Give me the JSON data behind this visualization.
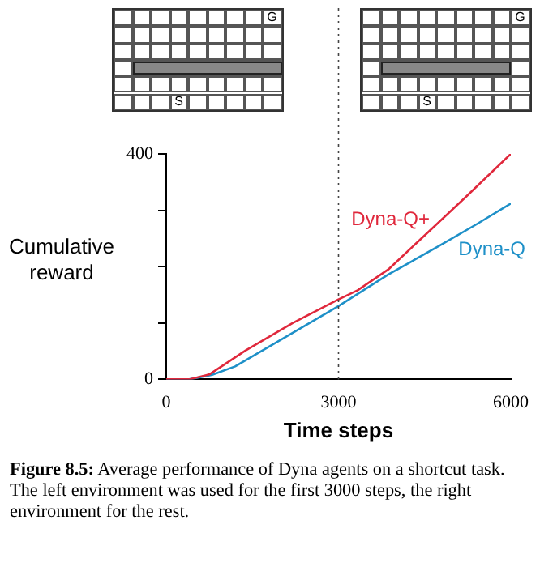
{
  "chart_data": {
    "type": "line",
    "xlabel": "Time steps",
    "ylabel": "Cumulative reward",
    "xlim": [
      0,
      6000
    ],
    "ylim": [
      0,
      400
    ],
    "xticks": [
      0,
      3000,
      6000
    ],
    "yticks": [
      0,
      {
        "value": 100,
        "label": null
      },
      {
        "value": 200,
        "label": null
      },
      {
        "value": 300,
        "label": null
      },
      400
    ],
    "grid": false,
    "legend": false,
    "marker": "none",
    "line_style": "solid",
    "series": [
      {
        "name": "Dyna-Q+",
        "color": "#e0283c",
        "x": [
          0,
          400,
          755,
          1378,
          2200,
          3000,
          3333,
          3867,
          4400,
          5200,
          6000
        ],
        "values": [
          0,
          0,
          9,
          51,
          100,
          142,
          158,
          195,
          246,
          322,
          400
        ]
      },
      {
        "name": "Dyna-Q",
        "color": "#1e90c8",
        "x": [
          0,
          400,
          800,
          1200,
          2089,
          3000,
          3867,
          4756,
          5400,
          6000
        ],
        "values": [
          0,
          0,
          8,
          23,
          76,
          130,
          186,
          237,
          275,
          312
        ]
      }
    ],
    "ref_lines": [
      {
        "axis": "x",
        "value": 3000,
        "line_style": "dotted",
        "color": "#444444"
      }
    ],
    "annotations": [
      "G",
      "S",
      "G",
      "S",
      "Figure 8.5: Average performance of Dyna agents on a shortcut task. The left environment was used for the first 3000 steps, the right environment for the rest."
    ]
  }
}
